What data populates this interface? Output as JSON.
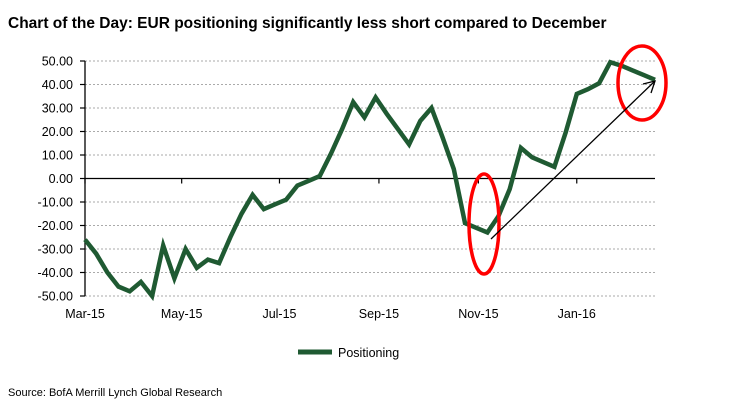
{
  "chart_data": {
    "type": "line",
    "title": "Chart of the Day: EUR positioning significantly less short compared to December",
    "xlabel": "",
    "ylabel": "",
    "ylim": [
      -50,
      50
    ],
    "yticks": [
      "50.00",
      "40.00",
      "30.00",
      "20.00",
      "10.00",
      "0.00",
      "-10.00",
      "-20.00",
      "-30.00",
      "-40.00",
      "-50.00"
    ],
    "ytick_values": [
      50,
      40,
      30,
      20,
      10,
      0,
      -10,
      -20,
      -30,
      -40,
      -50
    ],
    "x_unit": "weeks since early Mar-15",
    "xticks": [
      {
        "label": "Mar-15",
        "x": 0
      },
      {
        "label": "May-15",
        "x": 8.65
      },
      {
        "label": "Jul-15",
        "x": 17.4
      },
      {
        "label": "Sep-15",
        "x": 26.3
      },
      {
        "label": "Nov-15",
        "x": 35.2
      },
      {
        "label": "Jan-16",
        "x": 44
      }
    ],
    "grid": true,
    "legend": {
      "position": "bottom-center",
      "entries": [
        "Positioning"
      ]
    },
    "series": [
      {
        "name": "Positioning",
        "color": "#1f5a32",
        "values": [
          -26,
          -32,
          -40,
          -46,
          -48,
          -44,
          -50,
          -28.5,
          -42.5,
          -30,
          -38,
          -34.5,
          -36,
          -25,
          -15,
          -7,
          -13,
          -11,
          -9,
          -3,
          -1,
          1,
          10.5,
          21,
          32.5,
          26,
          34.5,
          27.5,
          21,
          14.5,
          24.5,
          30,
          17.5,
          4,
          -19,
          -21,
          -23,
          -16,
          -4.5,
          13,
          9,
          7,
          5,
          19.5,
          36,
          38,
          40.5,
          49.5,
          48,
          46,
          44,
          42
        ]
      }
    ],
    "annotations": [
      {
        "type": "ellipse",
        "color": "#ff0000",
        "around": "Nov-15 low"
      },
      {
        "type": "ellipse",
        "color": "#ff0000",
        "around": "latest value"
      },
      {
        "type": "arrow",
        "color": "#000000",
        "from": "Nov-15 low",
        "to": "latest value"
      }
    ],
    "source": "Source: BofA Merrill Lynch Global Research"
  }
}
